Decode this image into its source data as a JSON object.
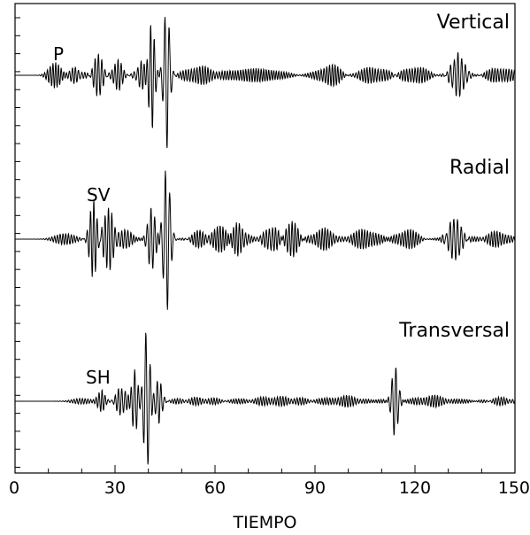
{
  "chart_data": {
    "type": "line",
    "xlabel": "TIEMPO",
    "xlim": [
      0,
      150
    ],
    "x_ticks": [
      "0",
      "30",
      "60",
      "90",
      "120",
      "150"
    ],
    "grid": false,
    "series": [
      {
        "name": "Vertical",
        "phase_label": "P",
        "phase_time": 13,
        "bursts": [
          {
            "t": 12,
            "a": 0.18,
            "w": 2.5,
            "f": 1.2
          },
          {
            "t": 18,
            "a": 0.12,
            "w": 2,
            "f": 1.1
          },
          {
            "t": 25,
            "a": 0.3,
            "w": 1.8,
            "f": 1.0
          },
          {
            "t": 31,
            "a": 0.25,
            "w": 1.5,
            "f": 1.1
          },
          {
            "t": 38,
            "a": 0.18,
            "w": 2,
            "f": 1.0
          },
          {
            "t": 41,
            "a": 0.75,
            "w": 1.2,
            "f": 0.9
          },
          {
            "t": 45.5,
            "a": 1.0,
            "w": 1.2,
            "f": 0.75
          },
          {
            "t": 55,
            "a": 0.12,
            "w": 6,
            "f": 1.2
          },
          {
            "t": 72,
            "a": 0.1,
            "w": 8,
            "f": 1.3
          },
          {
            "t": 95,
            "a": 0.14,
            "w": 4,
            "f": 1.2
          },
          {
            "t": 108,
            "a": 0.1,
            "w": 6,
            "f": 1.2
          },
          {
            "t": 120,
            "a": 0.1,
            "w": 5,
            "f": 1.2
          },
          {
            "t": 133,
            "a": 0.3,
            "w": 2.5,
            "f": 0.9
          },
          {
            "t": 145,
            "a": 0.1,
            "w": 5,
            "f": 1.2
          }
        ]
      },
      {
        "name": "Radial",
        "phase_label": "SV",
        "phase_time": 26,
        "bursts": [
          {
            "t": 15,
            "a": 0.08,
            "w": 4,
            "f": 1.2
          },
          {
            "t": 23.5,
            "a": 0.55,
            "w": 1.5,
            "f": 1.0
          },
          {
            "t": 28,
            "a": 0.45,
            "w": 2,
            "f": 1.0
          },
          {
            "t": 33,
            "a": 0.15,
            "w": 2,
            "f": 1.1
          },
          {
            "t": 41,
            "a": 0.45,
            "w": 1.5,
            "f": 0.9
          },
          {
            "t": 45.5,
            "a": 1.0,
            "w": 1.4,
            "f": 0.75
          },
          {
            "t": 55,
            "a": 0.12,
            "w": 3,
            "f": 1.2
          },
          {
            "t": 62,
            "a": 0.2,
            "w": 3,
            "f": 1.2
          },
          {
            "t": 67,
            "a": 0.22,
            "w": 2.5,
            "f": 1.1
          },
          {
            "t": 77,
            "a": 0.18,
            "w": 3,
            "f": 1.1
          },
          {
            "t": 83,
            "a": 0.25,
            "w": 2.5,
            "f": 1.1
          },
          {
            "t": 93,
            "a": 0.15,
            "w": 4,
            "f": 1.2
          },
          {
            "t": 105,
            "a": 0.12,
            "w": 5,
            "f": 1.2
          },
          {
            "t": 118,
            "a": 0.12,
            "w": 4,
            "f": 1.2
          },
          {
            "t": 132,
            "a": 0.3,
            "w": 2.5,
            "f": 0.9
          },
          {
            "t": 145,
            "a": 0.12,
            "w": 4,
            "f": 1.2
          }
        ]
      },
      {
        "name": "Transversal",
        "phase_label": "SH",
        "phase_time": 26,
        "bursts": [
          {
            "t": 20,
            "a": 0.04,
            "w": 4,
            "f": 1.2
          },
          {
            "t": 26,
            "a": 0.15,
            "w": 1.5,
            "f": 1.1
          },
          {
            "t": 32,
            "a": 0.2,
            "w": 2,
            "f": 1.0
          },
          {
            "t": 36,
            "a": 0.45,
            "w": 1.2,
            "f": 0.9
          },
          {
            "t": 39.5,
            "a": 1.0,
            "w": 1.2,
            "f": 0.75
          },
          {
            "t": 43,
            "a": 0.3,
            "w": 1.5,
            "f": 0.9
          },
          {
            "t": 55,
            "a": 0.06,
            "w": 6,
            "f": 1.2
          },
          {
            "t": 80,
            "a": 0.07,
            "w": 8,
            "f": 1.2
          },
          {
            "t": 100,
            "a": 0.06,
            "w": 6,
            "f": 1.2
          },
          {
            "t": 114,
            "a": 0.5,
            "w": 1.3,
            "f": 0.85
          },
          {
            "t": 125,
            "a": 0.06,
            "w": 6,
            "f": 1.2
          },
          {
            "t": 145,
            "a": 0.05,
            "w": 5,
            "f": 1.2
          }
        ]
      }
    ]
  }
}
